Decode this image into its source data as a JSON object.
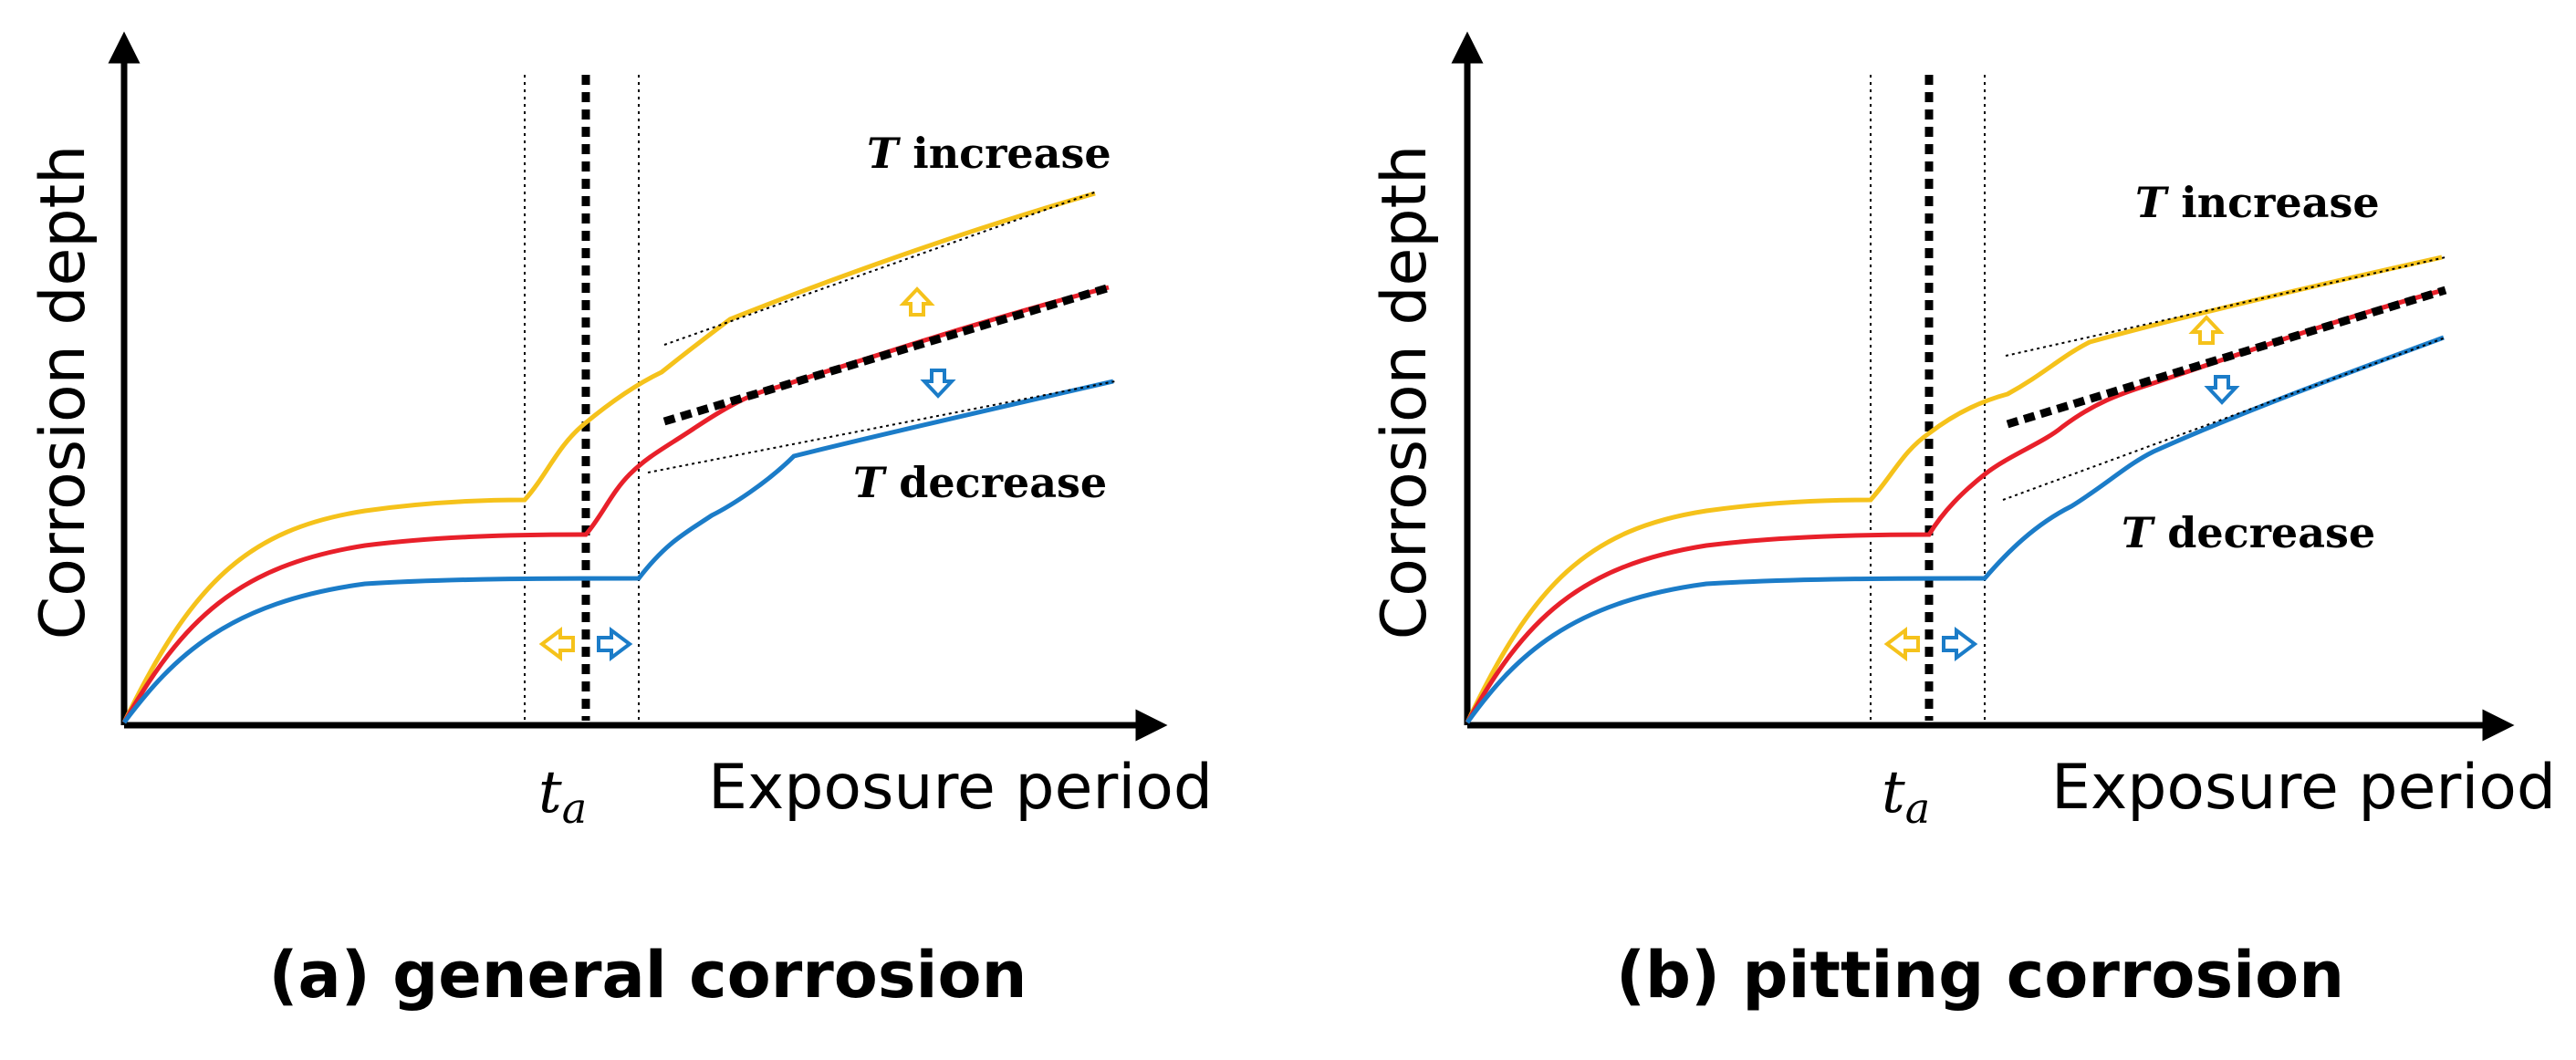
{
  "colors": {
    "increase": "#F5C21B",
    "reference": "#E8202A",
    "decrease": "#1B7CC8",
    "axis": "#000000"
  },
  "panels": [
    {
      "id": "a",
      "caption": "(a) general corrosion",
      "y_axis_label": "Corrosion depth",
      "x_axis_label": "Exposure period",
      "time_marker_base": "t",
      "time_marker_sub": "a",
      "increase_symbol": "T",
      "increase_word": " increase",
      "decrease_symbol": "T",
      "decrease_word": " decrease"
    },
    {
      "id": "b",
      "caption": "(b) pitting corrosion",
      "y_axis_label": "Corrosion depth",
      "x_axis_label": "Exposure period",
      "time_marker_base": "t",
      "time_marker_sub": "a",
      "increase_symbol": "T",
      "increase_word": " increase",
      "decrease_symbol": "T",
      "decrease_word": " decrease"
    }
  ]
}
